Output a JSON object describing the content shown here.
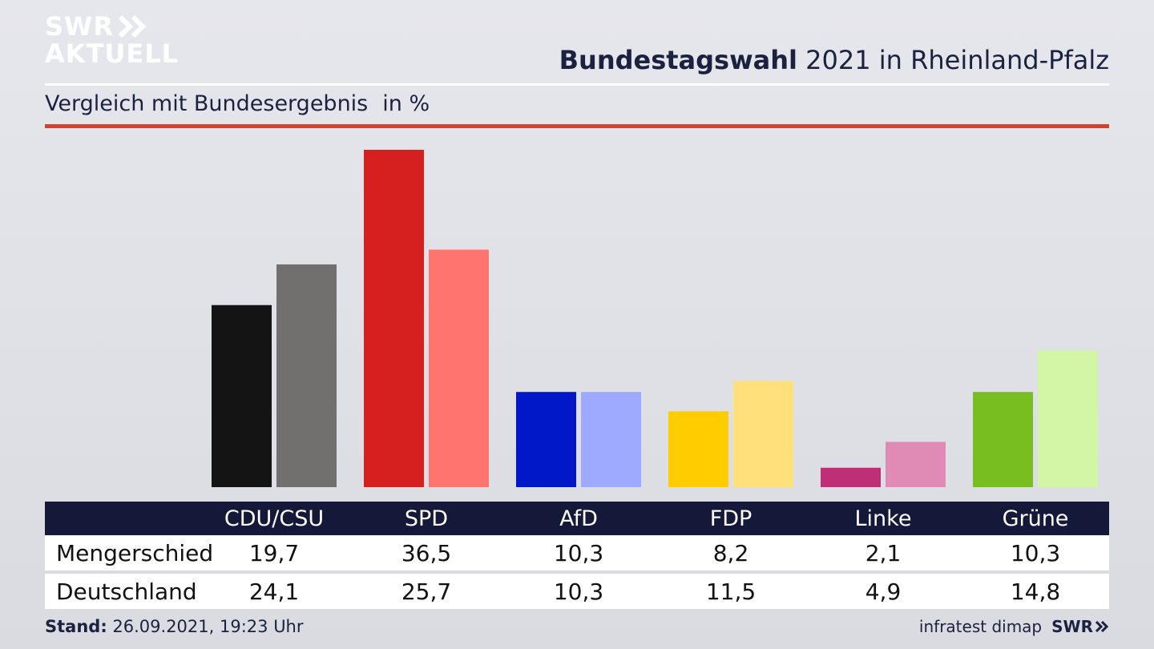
{
  "header": {
    "logo_line1": "SWR",
    "logo_line2": "AKTUELL",
    "title_bold": "Bundestagswahl",
    "title_rest": "2021 in Rheinland-Pfalz",
    "subtitle": "Vergleich mit Bundesergebnis",
    "unit": "in %"
  },
  "table": {
    "row_labels": [
      "Mengerschied",
      "Deutschland"
    ]
  },
  "footer": {
    "stand_label": "Stand:",
    "stand_value": "26.09.2021, 19:23 Uhr",
    "source": "infratest dimap",
    "brand": "SWR"
  },
  "chart_data": {
    "type": "bar",
    "title": "Bundestagswahl 2021 in Rheinland-Pfalz",
    "subtitle": "Vergleich mit Bundesergebnis",
    "unit": "in %",
    "categories": [
      "CDU/CSU",
      "SPD",
      "AfD",
      "FDP",
      "Linke",
      "Grüne"
    ],
    "series": [
      {
        "name": "Mengerschied",
        "values": [
          19.7,
          36.5,
          10.3,
          8.2,
          2.1,
          10.3
        ],
        "labels": [
          "19,7",
          "36,5",
          "10,3",
          "8,2",
          "2,1",
          "10,3"
        ],
        "colors": [
          "#141414",
          "#d6201f",
          "#0018c8",
          "#ffcc00",
          "#be2f77",
          "#78be20"
        ]
      },
      {
        "name": "Deutschland",
        "values": [
          24.1,
          25.7,
          10.3,
          11.5,
          4.9,
          14.8
        ],
        "labels": [
          "24,1",
          "25,7",
          "10,3",
          "11,5",
          "4,9",
          "14,8"
        ],
        "colors": [
          "#72706e",
          "#ff746e",
          "#9eaaff",
          "#ffe07a",
          "#e08ab6",
          "#d3f5a6"
        ]
      }
    ],
    "ylim": [
      0,
      36.5
    ],
    "grid": false,
    "legend": "table-below"
  }
}
